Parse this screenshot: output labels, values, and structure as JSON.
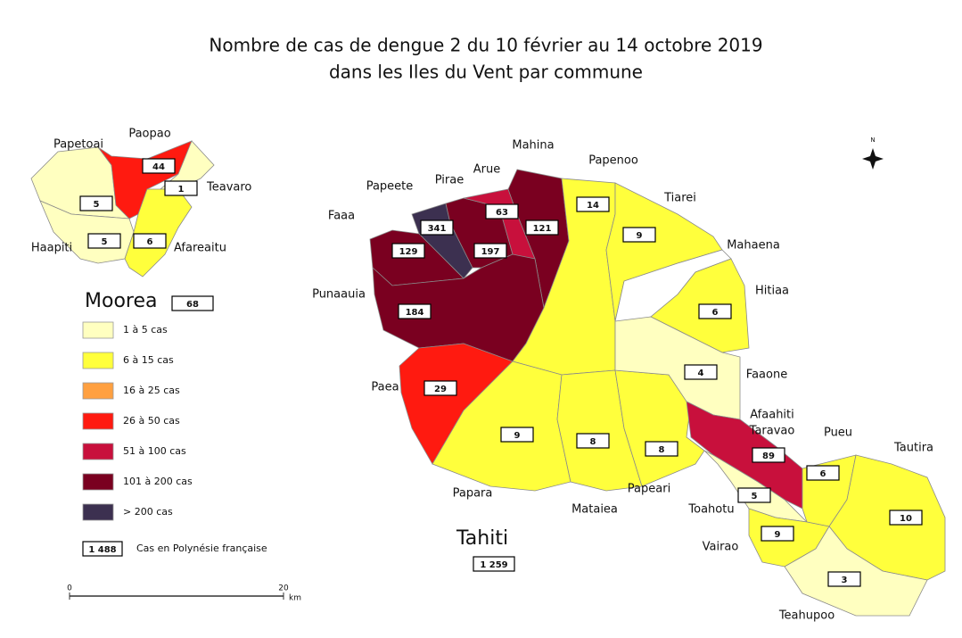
{
  "title": [
    "Nombre de cas de dengue 2 du 10 février au 14 octobre 2019",
    "dans les Iles du Vent par commune"
  ],
  "legend": {
    "classes": [
      {
        "label": "1 à 5 cas",
        "color": "#ffffc0"
      },
      {
        "label": "6 à 15 cas",
        "color": "#ffff3c"
      },
      {
        "label": "16 à 25 cas",
        "color": "#ffa040"
      },
      {
        "label": "26 à 50 cas",
        "color": "#ff1a10"
      },
      {
        "label": "51 à 100 cas",
        "color": "#c8103c"
      },
      {
        "label": "101 à 200 cas",
        "color": "#7a0020"
      },
      {
        "label": "> 200 cas",
        "color": "#3c3050"
      }
    ],
    "total": {
      "value": 1488,
      "label": "1 488"
    },
    "total_caption": "Cas en Polynésie française"
  },
  "islands": [
    {
      "name": "Moorea",
      "total": 68
    },
    {
      "name": "Tahiti",
      "total": {
        "value": 1259,
        "label": "1 259"
      }
    }
  ],
  "communes": [
    {
      "name": "Papetoai",
      "cases": 5,
      "class": 0
    },
    {
      "name": "Paopao",
      "cases": 44,
      "class": 3
    },
    {
      "name": "Teavaro",
      "cases": 1,
      "class": 0
    },
    {
      "name": "Haapiti",
      "cases": 5,
      "class": 0
    },
    {
      "name": "Afareaitu",
      "cases": 6,
      "class": 1
    },
    {
      "name": "Papeete",
      "cases": 341,
      "class": 6
    },
    {
      "name": "Pirae",
      "cases": 197,
      "class": 5
    },
    {
      "name": "Faaa",
      "cases": 129,
      "class": 5
    },
    {
      "name": "Arue",
      "cases": 63,
      "class": 4
    },
    {
      "name": "Mahina",
      "cases": 121,
      "class": 5
    },
    {
      "name": "Punaauia",
      "cases": 184,
      "class": 5
    },
    {
      "name": "Paea",
      "cases": 29,
      "class": 3
    },
    {
      "name": "Papenoo",
      "cases": 14,
      "class": 1
    },
    {
      "name": "Papara",
      "cases": 9,
      "class": 1
    },
    {
      "name": "Mataiea",
      "cases": 8,
      "class": 1
    },
    {
      "name": "Papeari",
      "cases": 8,
      "class": 1
    },
    {
      "name": "Tiarei",
      "cases": 9,
      "class": 1
    },
    {
      "name": "Mahaena",
      "cases": null,
      "class": null
    },
    {
      "name": "Hitiaa",
      "cases": 6,
      "class": 1
    },
    {
      "name": "Faaone",
      "cases": 4,
      "class": 0
    },
    {
      "name": [
        "Afaahiti",
        "Taravao"
      ],
      "cases": 89,
      "class": 4
    },
    {
      "name": "Toahotu",
      "cases": 5,
      "class": 0
    },
    {
      "name": "Pueu",
      "cases": 6,
      "class": 1
    },
    {
      "name": "Tautira",
      "cases": 10,
      "class": 1
    },
    {
      "name": "Vairao",
      "cases": 9,
      "class": 1
    },
    {
      "name": "Teahupoo",
      "cases": 3,
      "class": 0
    }
  ],
  "scale": {
    "ticks": [
      0,
      20
    ],
    "unit": "km"
  },
  "north_label": "N"
}
